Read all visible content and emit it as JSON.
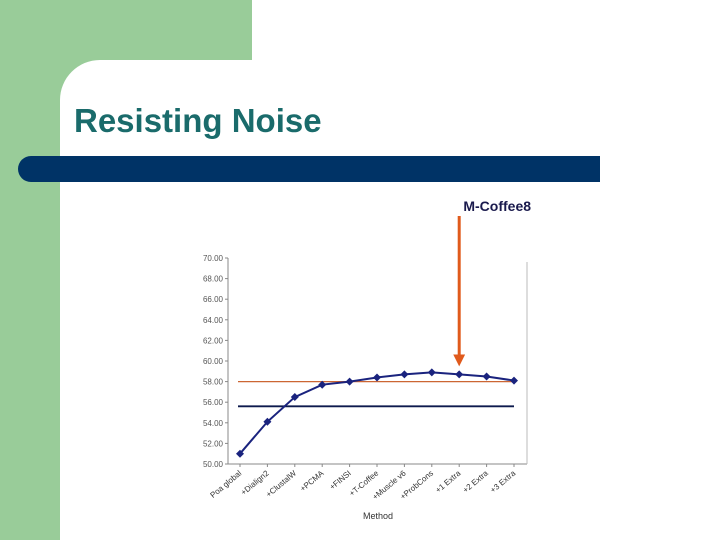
{
  "slide": {
    "title": "Resisting Noise"
  },
  "colors": {
    "background_block": "#99cc99",
    "title_text": "#1a6b6b",
    "title_bar": "#003366",
    "series": "#1a237e",
    "reference_high": "#cc6633",
    "reference_low": "#0d1a4d",
    "callout_arrow": "#e05a1c"
  },
  "chart_data": {
    "type": "line",
    "title": "",
    "xlabel": "Method",
    "ylabel": "",
    "ylim": [
      50,
      70
    ],
    "yticks": [
      "50.00",
      "52.00",
      "54.00",
      "56.00",
      "58.00",
      "60.00",
      "62.00",
      "64.00",
      "66.00",
      "68.00",
      "70.00"
    ],
    "categories": [
      "Poa global",
      "+Dialign2",
      "+ClustalW",
      "+PCMA",
      "+FINSI",
      "+T-Coffee",
      "+Muscle v6",
      "+ProbCons",
      "+1 Extra",
      "+2 Extra",
      "+3 Extra"
    ],
    "series": [
      {
        "values": [
          51.0,
          54.1,
          56.5,
          57.7,
          58.0,
          58.4,
          58.7,
          58.9,
          58.7,
          58.5,
          58.1
        ]
      }
    ],
    "reference_lines": [
      {
        "y": 58.0
      },
      {
        "y": 55.6
      }
    ],
    "annotation": {
      "text": "M-Coffee8",
      "category": "+1 Extra"
    },
    "grid": false
  }
}
